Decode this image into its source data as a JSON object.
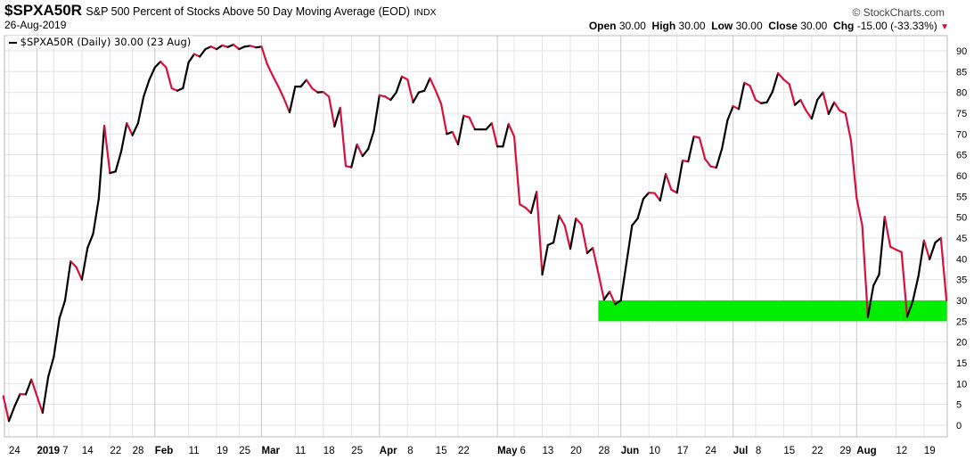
{
  "header": {
    "symbol": "$SPXA50R",
    "description": "S&P 500 Percent of Stocks Above 50 Day Moving Average (EOD)",
    "exchange": "INDX",
    "date": "26-Aug-2019",
    "copyright": "© StockCharts.com",
    "open_label": "Open",
    "open": "30.00",
    "high_label": "High",
    "high": "30.00",
    "low_label": "Low",
    "low": "30.00",
    "close_label": "Close",
    "close": "30.00",
    "chg_label": "Chg",
    "chg": "-15.00 (-33.33%)",
    "chg_direction": "down"
  },
  "chart_data": {
    "type": "line",
    "legend": "$SPXA50R (Daily) 30.00 (23 Aug)",
    "legend_position": "top-left",
    "grid": true,
    "ylim": [
      -3,
      95
    ],
    "yticks": [
      0,
      5,
      10,
      15,
      20,
      25,
      30,
      35,
      40,
      45,
      50,
      55,
      60,
      65,
      70,
      75,
      80,
      85,
      90
    ],
    "y_axis_side": "right",
    "colors": {
      "up": "#000000",
      "down": "#d6103b",
      "highlight": "#00ee00"
    },
    "highlight_band": {
      "y": [
        25,
        30
      ],
      "x_start": "2019-05-28",
      "x_end": "2019-08-23"
    },
    "xticks": [
      {
        "label": "24",
        "date": "2018-12-24",
        "bold": false
      },
      {
        "label": "2019",
        "date": "2019-01-02",
        "bold": true
      },
      {
        "label": "7",
        "date": "2019-01-07",
        "bold": false
      },
      {
        "label": "14",
        "date": "2019-01-14",
        "bold": false
      },
      {
        "label": "22",
        "date": "2019-01-22",
        "bold": false
      },
      {
        "label": "28",
        "date": "2019-01-28",
        "bold": false
      },
      {
        "label": "Feb",
        "date": "2019-02-01",
        "bold": true
      },
      {
        "label": "11",
        "date": "2019-02-11",
        "bold": false
      },
      {
        "label": "19",
        "date": "2019-02-19",
        "bold": false
      },
      {
        "label": "25",
        "date": "2019-02-25",
        "bold": false
      },
      {
        "label": "Mar",
        "date": "2019-03-01",
        "bold": true
      },
      {
        "label": "11",
        "date": "2019-03-11",
        "bold": false
      },
      {
        "label": "18",
        "date": "2019-03-18",
        "bold": false
      },
      {
        "label": "25",
        "date": "2019-03-25",
        "bold": false
      },
      {
        "label": "Apr",
        "date": "2019-04-01",
        "bold": true
      },
      {
        "label": "8",
        "date": "2019-04-08",
        "bold": false
      },
      {
        "label": "15",
        "date": "2019-04-15",
        "bold": false
      },
      {
        "label": "22",
        "date": "2019-04-22",
        "bold": false
      },
      {
        "label": "May",
        "date": "2019-05-01",
        "bold": true
      },
      {
        "label": "6",
        "date": "2019-05-06",
        "bold": false
      },
      {
        "label": "13",
        "date": "2019-05-13",
        "bold": false
      },
      {
        "label": "20",
        "date": "2019-05-20",
        "bold": false
      },
      {
        "label": "28",
        "date": "2019-05-28",
        "bold": false
      },
      {
        "label": "Jun",
        "date": "2019-06-03",
        "bold": true
      },
      {
        "label": "10",
        "date": "2019-06-10",
        "bold": false
      },
      {
        "label": "17",
        "date": "2019-06-17",
        "bold": false
      },
      {
        "label": "24",
        "date": "2019-06-24",
        "bold": false
      },
      {
        "label": "Jul",
        "date": "2019-07-01",
        "bold": true
      },
      {
        "label": "8",
        "date": "2019-07-08",
        "bold": false
      },
      {
        "label": "15",
        "date": "2019-07-15",
        "bold": false
      },
      {
        "label": "22",
        "date": "2019-07-22",
        "bold": false
      },
      {
        "label": "29",
        "date": "2019-07-29",
        "bold": false
      },
      {
        "label": "Aug",
        "date": "2019-08-01",
        "bold": true
      },
      {
        "label": "12",
        "date": "2019-08-12",
        "bold": false
      },
      {
        "label": "19",
        "date": "2019-08-19",
        "bold": false
      }
    ],
    "series": [
      {
        "points": [
          [
            "2018-12-21",
            7
          ],
          [
            "2018-12-24",
            1
          ],
          [
            "2018-12-26",
            4.5
          ],
          [
            "2018-12-27",
            7.5
          ],
          [
            "2018-12-28",
            7.4
          ],
          [
            "2018-12-31",
            11
          ],
          [
            "2019-01-02",
            7
          ],
          [
            "2019-01-03",
            3
          ],
          [
            "2019-01-04",
            11.6
          ],
          [
            "2019-01-07",
            16.5
          ],
          [
            "2019-01-08",
            25.7
          ],
          [
            "2019-01-09",
            30
          ],
          [
            "2019-01-10",
            39.4
          ],
          [
            "2019-01-11",
            38
          ],
          [
            "2019-01-14",
            35
          ],
          [
            "2019-01-15",
            42.6
          ],
          [
            "2019-01-16",
            46
          ],
          [
            "2019-01-17",
            54.4
          ],
          [
            "2019-01-18",
            72
          ],
          [
            "2019-01-22",
            60.6
          ],
          [
            "2019-01-23",
            61
          ],
          [
            "2019-01-24",
            65.8
          ],
          [
            "2019-01-25",
            72.6
          ],
          [
            "2019-01-28",
            69.7
          ],
          [
            "2019-01-29",
            72.6
          ],
          [
            "2019-01-30",
            79
          ],
          [
            "2019-01-31",
            83
          ],
          [
            "2019-02-01",
            86
          ],
          [
            "2019-02-04",
            87.4
          ],
          [
            "2019-02-05",
            86
          ],
          [
            "2019-02-06",
            81
          ],
          [
            "2019-02-07",
            80.4
          ],
          [
            "2019-02-08",
            81
          ],
          [
            "2019-02-11",
            87.2
          ],
          [
            "2019-02-12",
            89.2
          ],
          [
            "2019-02-13",
            88.6
          ],
          [
            "2019-02-14",
            90.4
          ],
          [
            "2019-02-15",
            91
          ],
          [
            "2019-02-19",
            90.4
          ],
          [
            "2019-02-20",
            91.3
          ],
          [
            "2019-02-21",
            90.9
          ],
          [
            "2019-02-22",
            91.5
          ],
          [
            "2019-02-25",
            90.4
          ],
          [
            "2019-02-26",
            91
          ],
          [
            "2019-02-27",
            91.2
          ],
          [
            "2019-02-28",
            90.8
          ],
          [
            "2019-03-01",
            91
          ],
          [
            "2019-03-04",
            86.8
          ],
          [
            "2019-03-05",
            84
          ],
          [
            "2019-03-06",
            81.4
          ],
          [
            "2019-03-07",
            78.5
          ],
          [
            "2019-03-08",
            75.2
          ],
          [
            "2019-03-11",
            81.4
          ],
          [
            "2019-03-12",
            81.4
          ],
          [
            "2019-03-13",
            83
          ],
          [
            "2019-03-14",
            81
          ],
          [
            "2019-03-15",
            80
          ],
          [
            "2019-03-18",
            80.1
          ],
          [
            "2019-03-19",
            79
          ],
          [
            "2019-03-20",
            71.8
          ],
          [
            "2019-03-21",
            76.3
          ],
          [
            "2019-03-22",
            62.3
          ],
          [
            "2019-03-25",
            62
          ],
          [
            "2019-03-26",
            67.5
          ],
          [
            "2019-03-27",
            64.7
          ],
          [
            "2019-03-28",
            66.4
          ],
          [
            "2019-03-29",
            70.7
          ],
          [
            "2019-04-01",
            79.3
          ],
          [
            "2019-04-02",
            79
          ],
          [
            "2019-04-03",
            78.2
          ],
          [
            "2019-04-04",
            80
          ],
          [
            "2019-04-05",
            83.8
          ],
          [
            "2019-04-08",
            83.1
          ],
          [
            "2019-04-09",
            77.6
          ],
          [
            "2019-04-10",
            80
          ],
          [
            "2019-04-11",
            80.4
          ],
          [
            "2019-04-12",
            83.4
          ],
          [
            "2019-04-15",
            80.5
          ],
          [
            "2019-04-16",
            77.2
          ],
          [
            "2019-04-17",
            70
          ],
          [
            "2019-04-18",
            70.5
          ],
          [
            "2019-04-22",
            67.5
          ],
          [
            "2019-04-23",
            74.4
          ],
          [
            "2019-04-24",
            74
          ],
          [
            "2019-04-25",
            71.1
          ],
          [
            "2019-04-26",
            71.1
          ],
          [
            "2019-04-29",
            71.1
          ],
          [
            "2019-04-30",
            72.6
          ],
          [
            "2019-05-01",
            67
          ],
          [
            "2019-05-02",
            67
          ],
          [
            "2019-05-03",
            72.4
          ],
          [
            "2019-05-06",
            69.4
          ],
          [
            "2019-05-07",
            53.1
          ],
          [
            "2019-05-08",
            52.3
          ],
          [
            "2019-05-09",
            51
          ],
          [
            "2019-05-10",
            56.1
          ],
          [
            "2019-05-13",
            36.2
          ],
          [
            "2019-05-14",
            43.3
          ],
          [
            "2019-05-15",
            43.9
          ],
          [
            "2019-05-16",
            50.4
          ],
          [
            "2019-05-17",
            48
          ],
          [
            "2019-05-20",
            42.4
          ],
          [
            "2019-05-21",
            49.7
          ],
          [
            "2019-05-22",
            48.2
          ],
          [
            "2019-05-23",
            41.4
          ],
          [
            "2019-05-24",
            42.6
          ],
          [
            "2019-05-28",
            36.5
          ],
          [
            "2019-05-29",
            30.2
          ],
          [
            "2019-05-30",
            32.1
          ],
          [
            "2019-05-31",
            29.1
          ],
          [
            "2019-06-03",
            30
          ],
          [
            "2019-06-04",
            39
          ],
          [
            "2019-06-05",
            48
          ],
          [
            "2019-06-06",
            49.7
          ],
          [
            "2019-06-07",
            54.4
          ],
          [
            "2019-06-10",
            55.9
          ],
          [
            "2019-06-11",
            55.8
          ],
          [
            "2019-06-12",
            54
          ],
          [
            "2019-06-13",
            60.4
          ],
          [
            "2019-06-14",
            56.6
          ],
          [
            "2019-06-17",
            55.9
          ],
          [
            "2019-06-18",
            63.6
          ],
          [
            "2019-06-19",
            63.4
          ],
          [
            "2019-06-20",
            69.4
          ],
          [
            "2019-06-21",
            69.1
          ],
          [
            "2019-06-24",
            64
          ],
          [
            "2019-06-25",
            62.2
          ],
          [
            "2019-06-26",
            61.9
          ],
          [
            "2019-06-27",
            66.4
          ],
          [
            "2019-06-28",
            73.3
          ],
          [
            "2019-07-01",
            76.7
          ],
          [
            "2019-07-02",
            76
          ],
          [
            "2019-07-03",
            82.3
          ],
          [
            "2019-07-05",
            81.6
          ],
          [
            "2019-07-08",
            78.2
          ],
          [
            "2019-07-09",
            77.4
          ],
          [
            "2019-07-10",
            77.6
          ],
          [
            "2019-07-11",
            80.1
          ],
          [
            "2019-07-12",
            84.6
          ],
          [
            "2019-07-15",
            83.1
          ],
          [
            "2019-07-16",
            82
          ],
          [
            "2019-07-17",
            77
          ],
          [
            "2019-07-18",
            78.2
          ],
          [
            "2019-07-19",
            75.6
          ],
          [
            "2019-07-22",
            73.7
          ],
          [
            "2019-07-23",
            78.2
          ],
          [
            "2019-07-24",
            80
          ],
          [
            "2019-07-25",
            74.8
          ],
          [
            "2019-07-26",
            77.6
          ],
          [
            "2019-07-29",
            75.6
          ],
          [
            "2019-07-30",
            75
          ],
          [
            "2019-07-31",
            68.4
          ],
          [
            "2019-08-01",
            54.6
          ],
          [
            "2019-08-02",
            48
          ],
          [
            "2019-08-05",
            26
          ],
          [
            "2019-08-06",
            33.6
          ],
          [
            "2019-08-07",
            36.2
          ],
          [
            "2019-08-08",
            50.1
          ],
          [
            "2019-08-09",
            42.9
          ],
          [
            "2019-08-12",
            42.2
          ],
          [
            "2019-08-13",
            41.6
          ],
          [
            "2019-08-14",
            26.1
          ],
          [
            "2019-08-15",
            29.8
          ],
          [
            "2019-08-16",
            35.8
          ],
          [
            "2019-08-19",
            44.4
          ],
          [
            "2019-08-20",
            39.9
          ],
          [
            "2019-08-21",
            43.9
          ],
          [
            "2019-08-22",
            45
          ],
          [
            "2019-08-23",
            30
          ]
        ]
      }
    ]
  }
}
